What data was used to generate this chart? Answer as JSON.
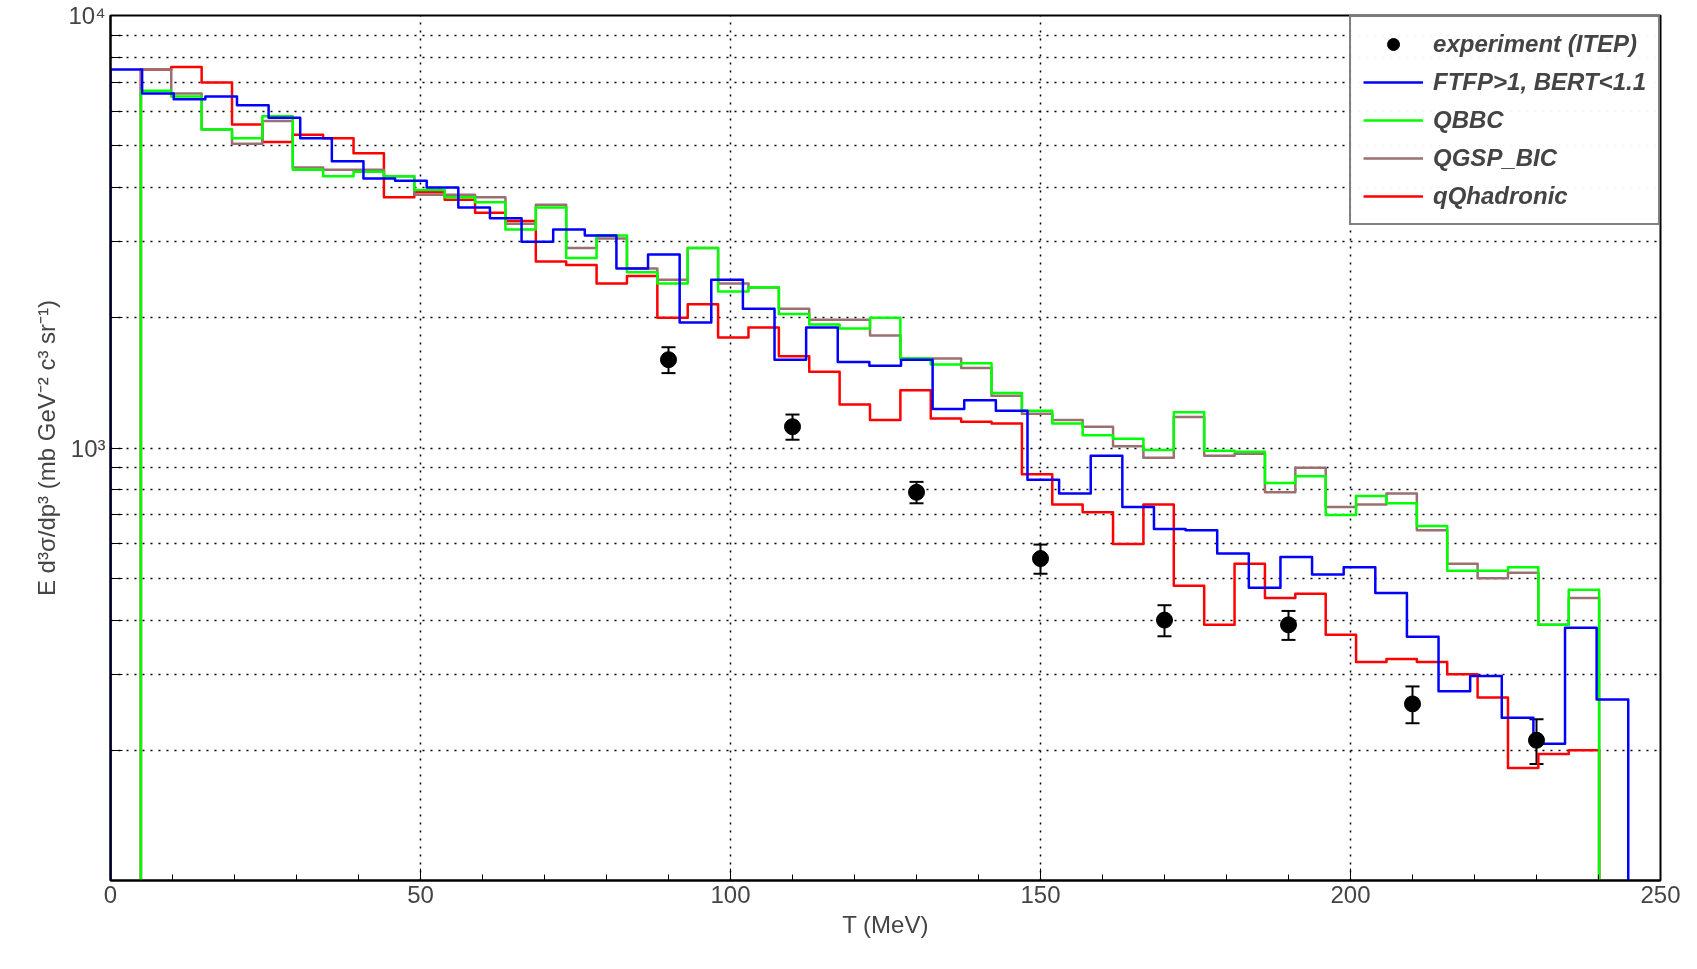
{
  "chart_data": {
    "type": "histogram",
    "xlabel": "T (MeV)",
    "ylabel": "E d³σ/dp³ (mb GeV⁻² c³ sr⁻¹)",
    "xlim": [
      0,
      250
    ],
    "ylim": [
      100,
      10000
    ],
    "log": "y",
    "grid": true,
    "legend": "top right",
    "xticks": [
      0,
      50,
      100,
      150,
      200,
      250
    ],
    "yticks": [
      {
        "value": 200,
        "label": null
      },
      {
        "value": 300,
        "label": null
      },
      {
        "value": 400,
        "label": null
      },
      {
        "value": 500,
        "label": null
      },
      {
        "value": 600,
        "label": null
      },
      {
        "value": 700,
        "label": null
      },
      {
        "value": 800,
        "label": null
      },
      {
        "value": 900,
        "label": null
      },
      {
        "value": 1000,
        "label": "10³"
      },
      {
        "value": 2000,
        "label": null
      },
      {
        "value": 3000,
        "label": null
      },
      {
        "value": 4000,
        "label": null
      },
      {
        "value": 5000,
        "label": null
      },
      {
        "value": 6000,
        "label": null
      },
      {
        "value": 7000,
        "label": null
      },
      {
        "value": 8000,
        "label": null
      },
      {
        "value": 9000,
        "label": null
      },
      {
        "value": 10000,
        "label": "10⁴"
      }
    ],
    "series": [
      {
        "name": "experiment (ITEP)",
        "type": "scatter",
        "marker": "circle",
        "color": "#000000",
        "x": [
          90,
          110,
          130,
          150,
          170,
          190,
          210,
          230
        ],
        "values": [
          1600,
          1120,
          790,
          555,
          400,
          390,
          256,
          211
        ],
        "errors": [
          110,
          75,
          45,
          43,
          33,
          30,
          25,
          25
        ]
      },
      {
        "name": "FTFP>1, BERT<1.1",
        "color": "#0000ff",
        "bins": [
          0,
          5.1,
          10.2,
          15.3,
          20.4,
          25.5,
          30.6,
          35.7,
          40.8,
          45.9,
          51,
          56.1,
          61.2,
          66.3,
          71.4,
          76.5,
          81.6,
          86.7,
          91.8,
          96.9,
          102,
          107.1,
          112.2,
          117.3,
          122.4,
          127.5,
          132.6,
          137.7,
          142.8,
          147.9,
          153,
          158.1,
          163.2,
          168.3,
          173.4,
          178.5,
          183.6,
          188.7,
          193.8,
          198.9,
          204,
          209.1,
          214.2,
          219.3,
          224.4,
          229.5,
          234.6,
          239.7,
          244.8
        ],
        "values": [
          7500,
          6600,
          6400,
          6500,
          6200,
          5800,
          5200,
          4600,
          4200,
          4150,
          4000,
          3600,
          3400,
          3000,
          3200,
          3100,
          2600,
          2800,
          1950,
          2450,
          2100,
          1600,
          1900,
          1580,
          1550,
          1600,
          1230,
          1290,
          1220,
          845,
          785,
          960,
          730,
          650,
          645,
          570,
          475,
          560,
          510,
          530,
          462,
          366,
          274,
          297,
          238,
          207,
          384,
          262
        ]
      },
      {
        "name": "QBBC",
        "color": "#00ff00",
        "bins": [
          4.9,
          9.8,
          14.7,
          19.6,
          24.5,
          29.4,
          34.3,
          39.2,
          44.1,
          49,
          53.9,
          58.8,
          63.7,
          68.6,
          73.5,
          78.4,
          83.3,
          88.2,
          93.1,
          98,
          102.9,
          107.8,
          112.7,
          117.6,
          122.5,
          127.4,
          132.3,
          137.2,
          142.1,
          147,
          151.9,
          156.8,
          161.7,
          166.6,
          171.5,
          176.4,
          181.3,
          186.2,
          191.1,
          196,
          200.9,
          205.8,
          210.7,
          215.6,
          220.5,
          225.4,
          230.3,
          235.2,
          240.1
        ],
        "values": [
          6700,
          6500,
          5450,
          5200,
          5850,
          4400,
          4250,
          4350,
          4250,
          3950,
          3800,
          3700,
          3200,
          3600,
          2750,
          3100,
          2550,
          2400,
          2900,
          2300,
          2350,
          2040,
          1930,
          1890,
          2000,
          1610,
          1560,
          1570,
          1340,
          1220,
          1140,
          1070,
          1050,
          990,
          1210,
          985,
          980,
          830,
          860,
          700,
          775,
          745,
          660,
          520,
          520,
          530,
          390,
          470
        ]
      },
      {
        "name": "QGSP_BIC",
        "color": "#9a7070",
        "bins": [
          4.9,
          9.8,
          14.7,
          19.6,
          24.5,
          29.4,
          34.3,
          39.2,
          44.1,
          49,
          53.9,
          58.8,
          63.7,
          68.6,
          73.5,
          78.4,
          83.3,
          88.2,
          93.1,
          98,
          102.9,
          107.8,
          112.7,
          117.6,
          122.5,
          127.4,
          132.3,
          137.2,
          142.1,
          147,
          151.9,
          156.8,
          161.7,
          166.6,
          171.5,
          176.4,
          181.3,
          186.2,
          191.1,
          196,
          200.9,
          205.8,
          210.7,
          215.6,
          220.5,
          225.4,
          230.3,
          235.2,
          240.1
        ],
        "values": [
          7500,
          6600,
          5450,
          5050,
          5700,
          4450,
          4400,
          4400,
          4250,
          3850,
          3850,
          3800,
          3300,
          3650,
          2900,
          3050,
          2600,
          2450,
          2900,
          2400,
          2350,
          2100,
          1980,
          1980,
          1820,
          1610,
          1610,
          1530,
          1320,
          1200,
          1160,
          1120,
          1010,
          950,
          1180,
          960,
          970,
          790,
          900,
          730,
          740,
          785,
          645,
          540,
          500,
          515,
          390,
          450
        ]
      },
      {
        "name": "qQhadronic",
        "color": "#ff0000",
        "bins": [
          4.9,
          9.8,
          14.7,
          19.6,
          24.5,
          29.4,
          34.3,
          39.2,
          44.1,
          49,
          53.9,
          58.8,
          63.7,
          68.6,
          73.5,
          78.4,
          83.3,
          88.2,
          93.1,
          98,
          102.9,
          107.8,
          112.7,
          117.6,
          122.5,
          127.4,
          132.3,
          137.2,
          142.1,
          147,
          151.9,
          156.8,
          161.7,
          166.6,
          171.5,
          176.4,
          181.3,
          186.2,
          191.1,
          196,
          200.9,
          205.8,
          210.7,
          215.6,
          220.5,
          225.4,
          230.3,
          235.2,
          240.1
        ],
        "values": [
          7500,
          7600,
          7000,
          5600,
          5100,
          5300,
          5200,
          4800,
          3800,
          3900,
          3750,
          3500,
          3350,
          2700,
          2650,
          2400,
          2500,
          2000,
          2150,
          1800,
          1900,
          1630,
          1500,
          1260,
          1160,
          1360,
          1170,
          1150,
          1140,
          870,
          740,
          710,
          600,
          740,
          480,
          390,
          540,
          450,
          460,
          370,
          320,
          325,
          320,
          300,
          265,
          182,
          196,
          200
        ]
      }
    ]
  }
}
